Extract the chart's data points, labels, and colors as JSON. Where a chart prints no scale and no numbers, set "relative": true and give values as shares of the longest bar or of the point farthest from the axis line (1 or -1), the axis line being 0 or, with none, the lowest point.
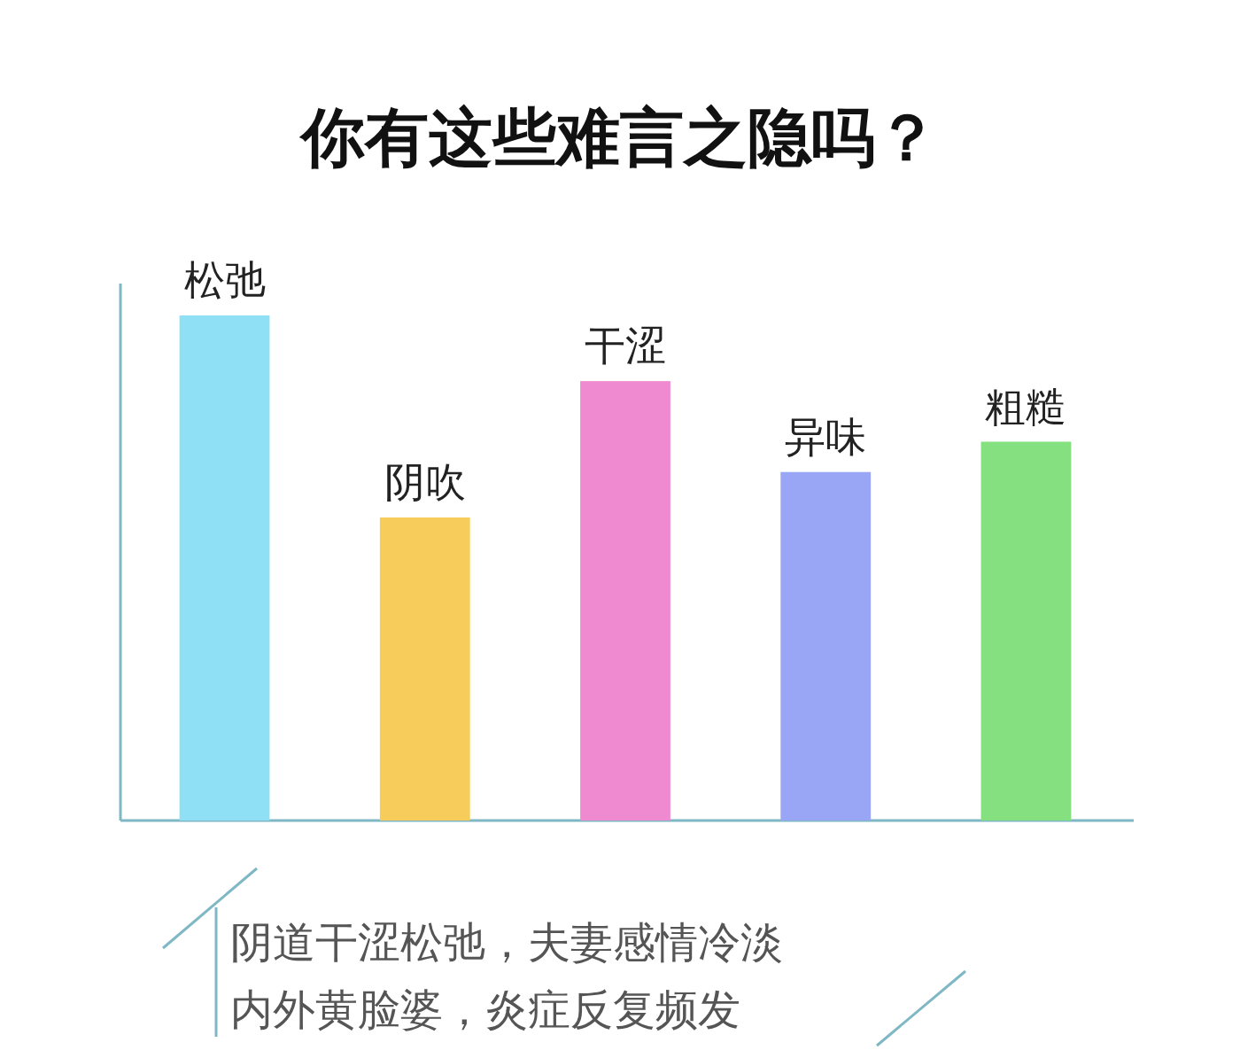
{
  "chart_data": {
    "type": "bar",
    "title": "你有这些难言之隐吗？",
    "relative": true,
    "categories": [
      "松弛",
      "阴吹",
      "干涩",
      "异味",
      "粗糙"
    ],
    "values": [
      1,
      0.6,
      0.87,
      0.69,
      0.75
    ],
    "colors": [
      "#8fe0f5",
      "#f7cc5a",
      "#f08ad0",
      "#98a6f5",
      "#85e07f"
    ],
    "annotations": [
      "阴道干涩松弛，夫妻感情冷淡",
      "内外黄脸婆，炎症反复频发"
    ]
  }
}
